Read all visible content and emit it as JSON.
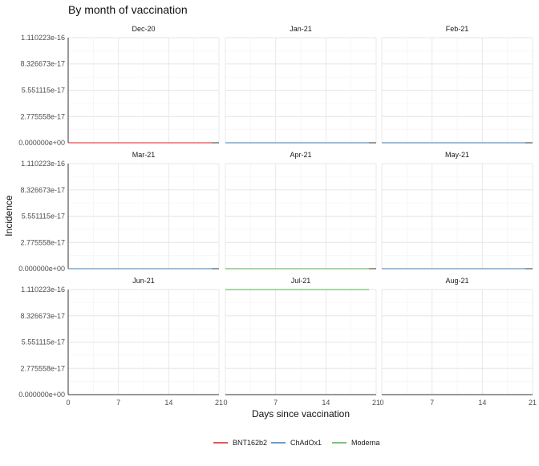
{
  "chart_data": {
    "type": "line",
    "title": "By month of vaccination",
    "xlabel": "Days since vaccination",
    "ylabel": "Incidence",
    "facet_layout": {
      "columns": 3,
      "rows": 3
    },
    "facets": [
      "Dec-20",
      "Jan-21",
      "Feb-21",
      "Mar-21",
      "Apr-21",
      "May-21",
      "Jun-21",
      "Jul-21",
      "Aug-21"
    ],
    "x_ticks": [
      0,
      7,
      14,
      21
    ],
    "x_tick_labels": [
      "0",
      "7",
      "14",
      "21"
    ],
    "xlim": [
      0,
      21
    ],
    "y_ticks": [
      0,
      2.775558e-17,
      5.551115e-17,
      8.326673e-17,
      1.110223e-16
    ],
    "y_tick_labels": [
      "0.000000e+00",
      "2.775558e-17",
      "5.551115e-17",
      "8.326673e-17",
      "1.110223e-16"
    ],
    "ylim": [
      0,
      1.110223e-16
    ],
    "grid": true,
    "legend_position": "bottom",
    "series": [
      {
        "name": "BNT162b2",
        "color": "#E41A1C",
        "panels": [
          {
            "facet": "Dec-20",
            "x": [
              0,
              20
            ],
            "y": [
              0,
              0
            ]
          },
          {
            "facet": "Feb-21",
            "x": [
              0,
              20
            ],
            "y": [
              0,
              0
            ]
          },
          {
            "facet": "Mar-21",
            "x": [
              0,
              20
            ],
            "y": [
              0,
              0
            ]
          },
          {
            "facet": "May-21",
            "x": [
              0,
              20
            ],
            "y": [
              0,
              0
            ]
          }
        ]
      },
      {
        "name": "ChAdOx1",
        "color": "#377EB8",
        "panels": [
          {
            "facet": "Jan-21",
            "x": [
              0,
              20
            ],
            "y": [
              0,
              0
            ]
          },
          {
            "facet": "Feb-21",
            "x": [
              0,
              20
            ],
            "y": [
              0,
              0
            ]
          },
          {
            "facet": "Mar-21",
            "x": [
              0,
              20
            ],
            "y": [
              0,
              0
            ]
          },
          {
            "facet": "Apr-21",
            "x": [
              0,
              20
            ],
            "y": [
              0,
              0
            ]
          },
          {
            "facet": "May-21",
            "x": [
              0,
              20
            ],
            "y": [
              0,
              0
            ]
          }
        ]
      },
      {
        "name": "Moderna",
        "color": "#4DAF4A",
        "panels": [
          {
            "facet": "Apr-21",
            "x": [
              0,
              20
            ],
            "y": [
              0,
              0
            ]
          },
          {
            "facet": "Jul-21",
            "x": [
              0,
              20
            ],
            "y": [
              1.110223e-16,
              1.110223e-16
            ]
          }
        ]
      }
    ]
  }
}
